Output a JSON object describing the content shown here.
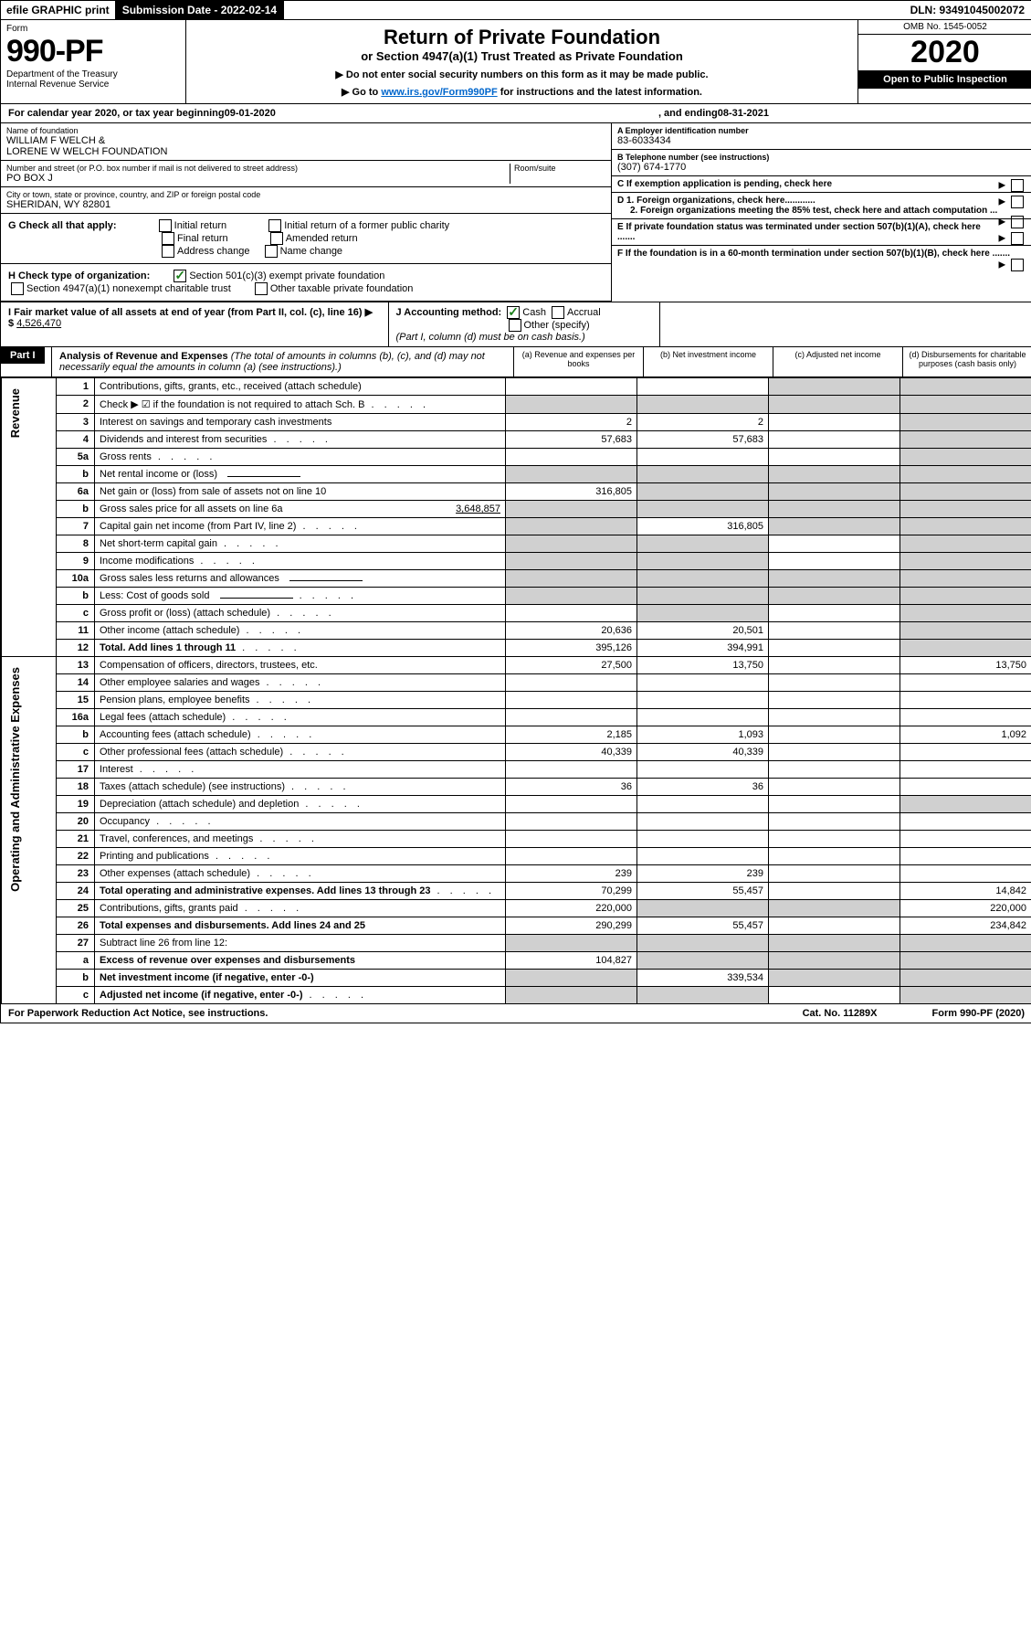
{
  "topbar": {
    "efile": "efile GRAPHIC print",
    "submission_label": "Submission Date - 2022-02-14",
    "dln": "DLN: 93491045002072"
  },
  "header": {
    "form_label": "Form",
    "form_no": "990-PF",
    "dept": "Department of the Treasury",
    "irs": "Internal Revenue Service",
    "title": "Return of Private Foundation",
    "subtitle": "or Section 4947(a)(1) Trust Treated as Private Foundation",
    "instr1": "▶ Do not enter social security numbers on this form as it may be made public.",
    "instr2_pre": "▶ Go to ",
    "instr2_link": "www.irs.gov/Form990PF",
    "instr2_post": " for instructions and the latest information.",
    "omb": "OMB No. 1545-0052",
    "year": "2020",
    "open": "Open to Public Inspection"
  },
  "calyear": {
    "pre": "For calendar year 2020, or tax year beginning ",
    "begin": "09-01-2020",
    "mid": " , and ending ",
    "end": "08-31-2021"
  },
  "info": {
    "name_lbl": "Name of foundation",
    "name": "WILLIAM F WELCH &\nLORENE W WELCH FOUNDATION",
    "addr_lbl": "Number and street (or P.O. box number if mail is not delivered to street address)",
    "addr": "PO BOX J",
    "room_lbl": "Room/suite",
    "city_lbl": "City or town, state or province, country, and ZIP or foreign postal code",
    "city": "SHERIDAN, WY  82801",
    "ein_lbl": "A Employer identification number",
    "ein": "83-6033434",
    "tel_lbl": "B Telephone number (see instructions)",
    "tel": "(307) 674-1770",
    "c_lbl": "C If exemption application is pending, check here",
    "d1": "D 1. Foreign organizations, check here............",
    "d2": "2. Foreign organizations meeting the 85% test, check here and attach computation ...",
    "e": "E  If private foundation status was terminated under section 507(b)(1)(A), check here .......",
    "f": "F  If the foundation is in a 60-month termination under section 507(b)(1)(B), check here .......",
    "g_lbl": "G Check all that apply:",
    "g_initial": "Initial return",
    "g_initial_former": "Initial return of a former public charity",
    "g_final": "Final return",
    "g_amended": "Amended return",
    "g_addr": "Address change",
    "g_name": "Name change",
    "h_lbl": "H Check type of organization:",
    "h_501c3": "Section 501(c)(3) exempt private foundation",
    "h_4947": "Section 4947(a)(1) nonexempt charitable trust",
    "h_other": "Other taxable private foundation",
    "i_lbl": "I Fair market value of all assets at end of year (from Part II, col. (c), line 16) ▶ $",
    "i_val": "4,526,470",
    "j_lbl": "J Accounting method:",
    "j_cash": "Cash",
    "j_accrual": "Accrual",
    "j_other": "Other (specify)",
    "j_note": "(Part I, column (d) must be on cash basis.)"
  },
  "part1": {
    "label": "Part I",
    "title": "Analysis of Revenue and Expenses",
    "title_note": " (The total of amounts in columns (b), (c), and (d) may not necessarily equal the amounts in column (a) (see instructions).)",
    "col_a": "(a) Revenue and expenses per books",
    "col_b": "(b) Net investment income",
    "col_c": "(c) Adjusted net income",
    "col_d": "(d) Disbursements for charitable purposes (cash basis only)"
  },
  "sections": {
    "revenue": "Revenue",
    "expenses": "Operating and Administrative Expenses"
  },
  "rows": [
    {
      "n": "1",
      "desc": "Contributions, gifts, grants, etc., received (attach schedule)",
      "a": "",
      "b": "",
      "c": "s",
      "d": "s"
    },
    {
      "n": "2",
      "desc": "Check ▶ ☑ if the foundation is not required to attach Sch. B",
      "a": "s",
      "b": "s",
      "c": "s",
      "d": "s",
      "dots": true
    },
    {
      "n": "3",
      "desc": "Interest on savings and temporary cash investments",
      "a": "2",
      "b": "2",
      "c": "",
      "d": "s"
    },
    {
      "n": "4",
      "desc": "Dividends and interest from securities",
      "a": "57,683",
      "b": "57,683",
      "c": "",
      "d": "s",
      "dots": true
    },
    {
      "n": "5a",
      "desc": "Gross rents",
      "a": "",
      "b": "",
      "c": "",
      "d": "s",
      "dots": true
    },
    {
      "n": "b",
      "desc": "Net rental income or (loss)",
      "a": "s",
      "b": "s",
      "c": "s",
      "d": "s",
      "inline_blank": true
    },
    {
      "n": "6a",
      "desc": "Net gain or (loss) from sale of assets not on line 10",
      "a": "316,805",
      "b": "s",
      "c": "s",
      "d": "s"
    },
    {
      "n": "b",
      "desc": "Gross sales price for all assets on line 6a",
      "a": "s",
      "b": "s",
      "c": "s",
      "d": "s",
      "inline_val": "3,648,857"
    },
    {
      "n": "7",
      "desc": "Capital gain net income (from Part IV, line 2)",
      "a": "s",
      "b": "316,805",
      "c": "s",
      "d": "s",
      "dots": true
    },
    {
      "n": "8",
      "desc": "Net short-term capital gain",
      "a": "s",
      "b": "s",
      "c": "",
      "d": "s",
      "dots": true
    },
    {
      "n": "9",
      "desc": "Income modifications",
      "a": "s",
      "b": "s",
      "c": "",
      "d": "s",
      "dots": true
    },
    {
      "n": "10a",
      "desc": "Gross sales less returns and allowances",
      "a": "s",
      "b": "s",
      "c": "s",
      "d": "s",
      "inline_blank": true
    },
    {
      "n": "b",
      "desc": "Less: Cost of goods sold",
      "a": "s",
      "b": "s",
      "c": "s",
      "d": "s",
      "inline_blank": true,
      "dots": true
    },
    {
      "n": "c",
      "desc": "Gross profit or (loss) (attach schedule)",
      "a": "",
      "b": "s",
      "c": "",
      "d": "s",
      "dots": true
    },
    {
      "n": "11",
      "desc": "Other income (attach schedule)",
      "a": "20,636",
      "b": "20,501",
      "c": "",
      "d": "s",
      "dots": true
    },
    {
      "n": "12",
      "desc": "Total. Add lines 1 through 11",
      "a": "395,126",
      "b": "394,991",
      "c": "",
      "d": "s",
      "bold": true,
      "dots": true
    }
  ],
  "exp_rows": [
    {
      "n": "13",
      "desc": "Compensation of officers, directors, trustees, etc.",
      "a": "27,500",
      "b": "13,750",
      "c": "",
      "d": "13,750"
    },
    {
      "n": "14",
      "desc": "Other employee salaries and wages",
      "a": "",
      "b": "",
      "c": "",
      "d": "",
      "dots": true
    },
    {
      "n": "15",
      "desc": "Pension plans, employee benefits",
      "a": "",
      "b": "",
      "c": "",
      "d": "",
      "dots": true
    },
    {
      "n": "16a",
      "desc": "Legal fees (attach schedule)",
      "a": "",
      "b": "",
      "c": "",
      "d": "",
      "dots": true
    },
    {
      "n": "b",
      "desc": "Accounting fees (attach schedule)",
      "a": "2,185",
      "b": "1,093",
      "c": "",
      "d": "1,092",
      "dots": true
    },
    {
      "n": "c",
      "desc": "Other professional fees (attach schedule)",
      "a": "40,339",
      "b": "40,339",
      "c": "",
      "d": "",
      "dots": true
    },
    {
      "n": "17",
      "desc": "Interest",
      "a": "",
      "b": "",
      "c": "",
      "d": "",
      "dots": true
    },
    {
      "n": "18",
      "desc": "Taxes (attach schedule) (see instructions)",
      "a": "36",
      "b": "36",
      "c": "",
      "d": "",
      "dots": true
    },
    {
      "n": "19",
      "desc": "Depreciation (attach schedule) and depletion",
      "a": "",
      "b": "",
      "c": "",
      "d": "s",
      "dots": true
    },
    {
      "n": "20",
      "desc": "Occupancy",
      "a": "",
      "b": "",
      "c": "",
      "d": "",
      "dots": true
    },
    {
      "n": "21",
      "desc": "Travel, conferences, and meetings",
      "a": "",
      "b": "",
      "c": "",
      "d": "",
      "dots": true
    },
    {
      "n": "22",
      "desc": "Printing and publications",
      "a": "",
      "b": "",
      "c": "",
      "d": "",
      "dots": true
    },
    {
      "n": "23",
      "desc": "Other expenses (attach schedule)",
      "a": "239",
      "b": "239",
      "c": "",
      "d": "",
      "dots": true
    },
    {
      "n": "24",
      "desc": "Total operating and administrative expenses. Add lines 13 through 23",
      "a": "70,299",
      "b": "55,457",
      "c": "",
      "d": "14,842",
      "bold": true,
      "dots": true
    },
    {
      "n": "25",
      "desc": "Contributions, gifts, grants paid",
      "a": "220,000",
      "b": "s",
      "c": "s",
      "d": "220,000",
      "dots": true
    },
    {
      "n": "26",
      "desc": "Total expenses and disbursements. Add lines 24 and 25",
      "a": "290,299",
      "b": "55,457",
      "c": "",
      "d": "234,842",
      "bold": true
    },
    {
      "n": "27",
      "desc": "Subtract line 26 from line 12:",
      "a": "s",
      "b": "s",
      "c": "s",
      "d": "s"
    },
    {
      "n": "a",
      "desc": "Excess of revenue over expenses and disbursements",
      "a": "104,827",
      "b": "s",
      "c": "s",
      "d": "s",
      "bold": true
    },
    {
      "n": "b",
      "desc": "Net investment income (if negative, enter -0-)",
      "a": "s",
      "b": "339,534",
      "c": "s",
      "d": "s",
      "bold": true
    },
    {
      "n": "c",
      "desc": "Adjusted net income (if negative, enter -0-)",
      "a": "s",
      "b": "s",
      "c": "",
      "d": "s",
      "bold": true,
      "dots": true
    }
  ],
  "footer": {
    "left": "For Paperwork Reduction Act Notice, see instructions.",
    "mid": "Cat. No. 11289X",
    "right": "Form 990-PF (2020)"
  }
}
